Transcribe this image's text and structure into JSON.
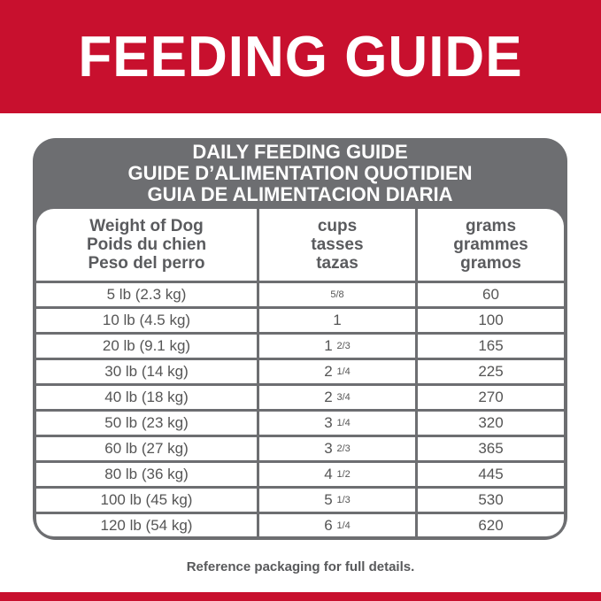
{
  "banner": {
    "title": "FEEDING GUIDE",
    "color": "#c8102e"
  },
  "card": {
    "title_lines": [
      "DAILY FEEDING GUIDE",
      "GUIDE D’ALIMENTATION QUOTIDIEN",
      "GUIA DE ALIMENTACION DIARIA"
    ],
    "color": "#6d6e71"
  },
  "headers": [
    [
      "Weight of Dog",
      "Poids du chien",
      "Peso del perro"
    ],
    [
      "cups",
      "tasses",
      "tazas"
    ],
    [
      "grams",
      "grammes",
      "gramos"
    ]
  ],
  "rows": [
    {
      "weight": "5 lb (2.3 kg)",
      "cups_whole": "",
      "cups_frac": "5/8",
      "grams": "60"
    },
    {
      "weight": "10 lb (4.5 kg)",
      "cups_whole": "1",
      "cups_frac": "",
      "grams": "100"
    },
    {
      "weight": "20 lb (9.1 kg)",
      "cups_whole": "1",
      "cups_frac": "2/3",
      "grams": "165"
    },
    {
      "weight": "30 lb (14 kg)",
      "cups_whole": "2",
      "cups_frac": "1/4",
      "grams": "225"
    },
    {
      "weight": "40 lb (18 kg)",
      "cups_whole": "2",
      "cups_frac": "3/4",
      "grams": "270"
    },
    {
      "weight": "50 lb (23 kg)",
      "cups_whole": "3",
      "cups_frac": "1/4",
      "grams": "320"
    },
    {
      "weight": "60 lb (27 kg)",
      "cups_whole": "3",
      "cups_frac": "2/3",
      "grams": "365"
    },
    {
      "weight": "80 lb (36 kg)",
      "cups_whole": "4",
      "cups_frac": "1/2",
      "grams": "445"
    },
    {
      "weight": "100 lb (45 kg)",
      "cups_whole": "5",
      "cups_frac": "1/3",
      "grams": "530"
    },
    {
      "weight": "120 lb (54 kg)",
      "cups_whole": "6",
      "cups_frac": "1/4",
      "grams": "620"
    }
  ],
  "footer": "Reference packaging for full details."
}
